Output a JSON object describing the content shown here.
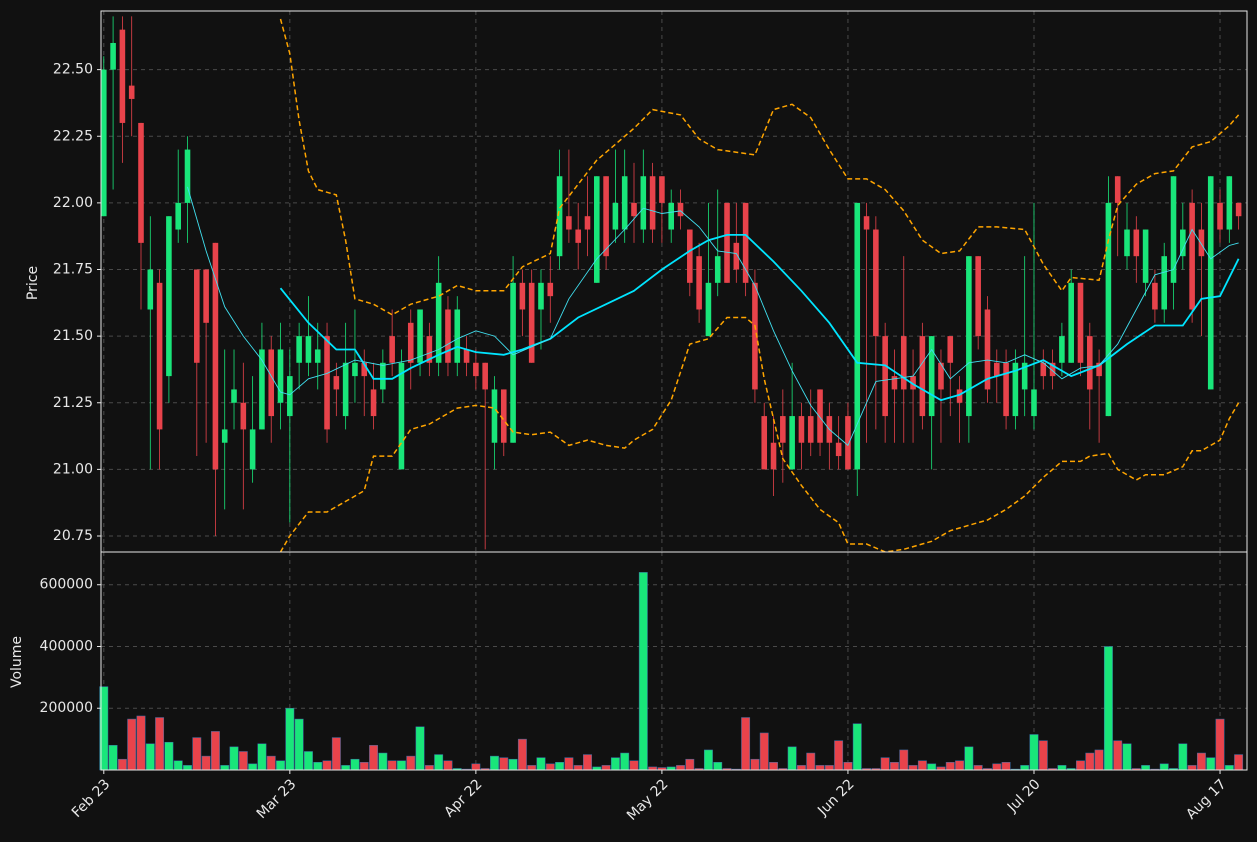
{
  "chart_data": [
    {
      "type": "candlestick",
      "y_label": "Price",
      "grid": true,
      "up_color": "#19e67a",
      "down_color": "#e8434b",
      "xlim": [
        -0.3,
        122.9
      ],
      "ylim": [
        20.69,
        22.72
      ],
      "yticks": [
        {
          "value": 20.75,
          "label": "20.75"
        },
        {
          "value": 21,
          "label": "21.00"
        },
        {
          "value": 21.25,
          "label": "21.25"
        },
        {
          "value": 21.5,
          "label": "21.50"
        },
        {
          "value": 21.75,
          "label": "21.75"
        },
        {
          "value": 22,
          "label": "22.00"
        },
        {
          "value": 22.25,
          "label": "22.25"
        },
        {
          "value": 22.5,
          "label": "22.50"
        }
      ],
      "open": [
        21.95,
        22.5,
        22.65,
        22.44,
        22.3,
        21.6,
        21.7,
        21.35,
        21.9,
        22.0,
        21.75,
        21.75,
        21.85,
        21.1,
        21.25,
        21.25,
        21.0,
        21.15,
        21.45,
        21.25,
        21.2,
        21.4,
        21.4,
        21.4,
        21.5,
        21.35,
        21.2,
        21.35,
        21.4,
        21.3,
        21.3,
        21.5,
        21.0,
        21.55,
        21.4,
        21.5,
        21.4,
        21.6,
        21.4,
        21.45,
        21.4,
        21.4,
        21.1,
        21.3,
        21.1,
        21.7,
        21.7,
        21.6,
        21.7,
        21.8,
        21.95,
        21.9,
        21.95,
        21.7,
        22.1,
        21.9,
        21.9,
        22.0,
        21.9,
        22.1,
        22.1,
        21.9,
        22.0,
        21.9,
        21.8,
        21.5,
        21.7,
        22.0,
        21.85,
        22.0,
        21.7,
        21.2,
        21.1,
        21.2,
        21.0,
        21.2,
        21.2,
        21.3,
        21.2,
        21.1,
        21.2,
        21.0,
        21.95,
        21.9,
        21.5,
        21.35,
        21.5,
        21.35,
        21.5,
        21.2,
        21.4,
        21.5,
        21.3,
        21.2,
        21.8,
        21.6,
        21.4,
        21.4,
        21.2,
        21.3,
        21.2,
        21.4,
        21.4,
        21.4,
        21.4,
        21.7,
        21.5,
        21.4,
        21.2,
        22.1,
        21.8,
        21.9,
        21.7,
        21.7,
        21.6,
        21.7,
        21.8,
        22.0,
        21.9,
        21.3,
        22.0,
        21.9,
        22.0
      ],
      "high": [
        22.55,
        22.7,
        22.7,
        22.7,
        22.3,
        21.95,
        21.75,
        21.95,
        22.2,
        22.25,
        21.75,
        21.75,
        21.85,
        21.45,
        21.45,
        21.4,
        21.35,
        21.55,
        21.5,
        21.55,
        21.45,
        21.55,
        21.65,
        21.55,
        21.55,
        21.4,
        21.55,
        21.6,
        21.45,
        21.4,
        21.45,
        21.6,
        21.45,
        21.6,
        21.6,
        21.55,
        21.8,
        21.65,
        21.65,
        21.5,
        21.45,
        21.4,
        21.35,
        21.3,
        21.8,
        21.75,
        21.75,
        21.75,
        21.8,
        22.2,
        22.2,
        22.0,
        22.1,
        22.1,
        22.1,
        22.2,
        22.2,
        22.15,
        22.2,
        22.15,
        22.1,
        22.05,
        22.05,
        21.9,
        21.85,
        22.0,
        22.05,
        22.0,
        22.0,
        22.0,
        21.75,
        21.25,
        21.2,
        21.3,
        21.4,
        21.25,
        21.3,
        21.3,
        21.25,
        21.2,
        21.25,
        22.0,
        22.0,
        21.95,
        21.55,
        21.45,
        21.8,
        21.45,
        21.55,
        21.5,
        21.45,
        21.5,
        21.35,
        21.8,
        21.8,
        21.65,
        21.45,
        21.45,
        21.45,
        21.8,
        22.0,
        21.45,
        21.45,
        21.55,
        21.75,
        21.7,
        21.55,
        21.45,
        22.1,
        22.1,
        22.0,
        21.95,
        21.9,
        21.75,
        21.85,
        22.1,
        22.0,
        22.05,
        22.0,
        22.1,
        22.05,
        22.1,
        22.0
      ],
      "low": [
        21.95,
        22.05,
        22.15,
        22.25,
        21.6,
        21.0,
        21.0,
        21.25,
        21.85,
        21.85,
        21.05,
        21.1,
        20.75,
        20.85,
        21.15,
        20.85,
        20.95,
        21.15,
        21.1,
        21.15,
        20.8,
        21.3,
        21.35,
        21.3,
        21.1,
        21.2,
        21.15,
        21.25,
        21.2,
        21.15,
        21.25,
        21.35,
        21.0,
        21.3,
        21.35,
        21.35,
        21.35,
        21.35,
        21.35,
        21.35,
        21.3,
        20.7,
        21.0,
        21.05,
        21.1,
        21.5,
        21.4,
        21.45,
        21.55,
        21.75,
        21.85,
        21.75,
        21.8,
        21.7,
        21.75,
        21.85,
        21.85,
        21.85,
        21.85,
        21.85,
        21.85,
        21.85,
        21.9,
        21.65,
        21.55,
        21.5,
        21.65,
        21.7,
        21.7,
        21.65,
        21.25,
        21.0,
        20.9,
        20.95,
        21.0,
        21.0,
        21.05,
        21.05,
        21.0,
        21.0,
        21.0,
        20.9,
        21.1,
        21.15,
        21.1,
        21.1,
        21.1,
        21.1,
        21.15,
        21.0,
        21.1,
        21.2,
        21.1,
        21.1,
        21.45,
        21.25,
        21.25,
        21.15,
        21.15,
        21.2,
        21.15,
        21.3,
        21.3,
        21.35,
        21.4,
        21.35,
        21.15,
        21.1,
        21.2,
        21.8,
        21.75,
        21.7,
        21.65,
        21.55,
        21.55,
        21.6,
        21.75,
        21.55,
        21.5,
        21.3,
        21.85,
        21.85,
        21.9
      ],
      "close": [
        22.5,
        22.6,
        22.3,
        22.39,
        21.85,
        21.75,
        21.15,
        21.95,
        22.0,
        22.2,
        21.4,
        21.55,
        21.0,
        21.15,
        21.3,
        21.15,
        21.15,
        21.45,
        21.2,
        21.45,
        21.35,
        21.5,
        21.5,
        21.45,
        21.15,
        21.3,
        21.4,
        21.4,
        21.35,
        21.2,
        21.4,
        21.4,
        21.4,
        21.4,
        21.6,
        21.4,
        21.7,
        21.4,
        21.6,
        21.4,
        21.35,
        21.3,
        21.3,
        21.1,
        21.7,
        21.6,
        21.4,
        21.7,
        21.65,
        22.1,
        21.9,
        21.85,
        21.9,
        22.1,
        21.8,
        22.0,
        22.1,
        21.95,
        22.1,
        21.9,
        22.0,
        22.0,
        21.95,
        21.7,
        21.6,
        21.7,
        21.8,
        21.7,
        21.75,
        21.7,
        21.3,
        21.0,
        21.0,
        21.1,
        21.2,
        21.1,
        21.1,
        21.1,
        21.1,
        21.05,
        21.0,
        22.0,
        21.9,
        21.5,
        21.2,
        21.3,
        21.3,
        21.3,
        21.2,
        21.5,
        21.3,
        21.4,
        21.25,
        21.8,
        21.5,
        21.3,
        21.35,
        21.2,
        21.4,
        21.4,
        21.3,
        21.35,
        21.35,
        21.5,
        21.7,
        21.4,
        21.3,
        21.35,
        22.0,
        22.0,
        21.9,
        21.8,
        21.9,
        21.6,
        21.8,
        22.1,
        21.9,
        21.6,
        21.8,
        22.1,
        21.9,
        22.1,
        21.95
      ],
      "lines": [
        {
          "color": "#00e5ff",
          "width": 1.8,
          "dash": false,
          "x": [
            19,
            22,
            25,
            27,
            29,
            31,
            33,
            36,
            38,
            40,
            43,
            45,
            48,
            51,
            54,
            57,
            60,
            63,
            65,
            67,
            69,
            72,
            75,
            78,
            81,
            84,
            87,
            90,
            92,
            95,
            98,
            101,
            104,
            107,
            110,
            113,
            116,
            118,
            120,
            122
          ],
          "values": [
            21.68,
            21.55,
            21.45,
            21.45,
            21.34,
            21.34,
            21.38,
            21.43,
            21.46,
            21.44,
            21.43,
            21.45,
            21.49,
            21.57,
            21.62,
            21.67,
            21.75,
            21.82,
            21.86,
            21.88,
            21.88,
            21.78,
            21.67,
            21.55,
            21.4,
            21.39,
            21.32,
            21.26,
            21.28,
            21.34,
            21.37,
            21.41,
            21.35,
            21.39,
            21.47,
            21.54,
            21.54,
            21.64,
            21.65,
            21.79
          ]
        },
        {
          "color": "#40e0f0",
          "width": 0.9,
          "dash": false,
          "x": [
            9,
            11,
            13,
            15,
            17,
            19,
            20,
            22,
            24,
            27,
            30,
            33,
            36,
            38,
            40,
            42,
            44,
            46,
            48,
            50,
            53,
            56,
            58,
            60,
            62,
            64,
            66,
            68,
            70,
            72,
            74,
            76,
            78,
            80,
            83,
            85,
            87,
            89,
            91,
            93,
            95,
            97,
            99,
            101,
            103,
            105,
            107,
            109,
            111,
            113,
            115,
            117,
            119,
            121,
            122
          ],
          "values": [
            22.06,
            21.82,
            21.61,
            21.5,
            21.41,
            21.29,
            21.28,
            21.34,
            21.36,
            21.41,
            21.39,
            21.41,
            21.45,
            21.49,
            21.52,
            21.5,
            21.43,
            21.46,
            21.49,
            21.64,
            21.79,
            21.9,
            21.98,
            21.96,
            21.97,
            21.91,
            21.82,
            21.81,
            21.69,
            21.52,
            21.37,
            21.24,
            21.15,
            21.09,
            21.33,
            21.34,
            21.35,
            21.45,
            21.34,
            21.4,
            21.41,
            21.4,
            21.43,
            21.4,
            21.34,
            21.38,
            21.39,
            21.47,
            21.6,
            21.73,
            21.75,
            21.9,
            21.79,
            21.84,
            21.85
          ]
        },
        {
          "color": "#ffa500",
          "width": 1.5,
          "dash": true,
          "x": [
            19,
            20,
            21,
            22,
            23,
            25,
            26,
            27,
            29,
            31,
            33,
            35,
            36,
            38,
            40,
            43,
            45,
            48,
            49,
            51,
            53,
            55,
            57,
            59,
            62,
            64,
            66,
            68,
            70,
            72,
            74,
            76,
            78,
            80,
            82,
            84,
            86,
            88,
            90,
            92,
            94,
            96,
            99,
            101,
            103,
            104,
            107,
            108,
            109,
            111,
            113,
            115,
            117,
            119,
            121,
            122
          ],
          "values": [
            22.69,
            22.56,
            22.31,
            22.12,
            22.05,
            22.03,
            21.86,
            21.64,
            21.62,
            21.58,
            21.62,
            21.64,
            21.65,
            21.69,
            21.67,
            21.67,
            21.76,
            21.81,
            21.98,
            22.07,
            22.16,
            22.22,
            22.28,
            22.35,
            22.33,
            22.24,
            22.2,
            22.19,
            22.18,
            22.35,
            22.37,
            22.32,
            22.2,
            22.09,
            22.09,
            22.05,
            21.97,
            21.86,
            21.81,
            21.82,
            21.91,
            21.91,
            21.9,
            21.77,
            21.67,
            21.72,
            21.71,
            21.86,
            21.99,
            22.07,
            22.11,
            22.12,
            22.21,
            22.23,
            22.29,
            22.33
          ]
        },
        {
          "color": "#ffa500",
          "width": 1.5,
          "dash": true,
          "x": [
            19,
            20,
            22,
            24,
            26,
            28,
            29,
            31,
            33,
            35,
            37,
            38,
            40,
            42,
            44,
            46,
            48,
            50,
            52,
            54,
            56,
            57,
            59,
            61,
            63,
            65,
            67,
            69,
            70,
            71,
            72,
            73,
            75,
            77,
            79,
            80,
            82,
            84,
            86,
            89,
            91,
            93,
            95,
            97,
            99,
            101,
            103,
            105,
            106,
            108,
            109,
            111,
            112,
            114,
            116,
            117,
            118,
            120,
            121,
            122
          ],
          "values": [
            20.69,
            20.75,
            20.84,
            20.84,
            20.88,
            20.92,
            21.05,
            21.05,
            21.15,
            21.17,
            21.21,
            21.23,
            21.24,
            21.23,
            21.14,
            21.13,
            21.14,
            21.09,
            21.11,
            21.09,
            21.08,
            21.11,
            21.15,
            21.26,
            21.47,
            21.49,
            21.57,
            21.57,
            21.54,
            21.34,
            21.19,
            21.04,
            20.94,
            20.85,
            20.8,
            20.72,
            20.72,
            20.69,
            20.7,
            20.73,
            20.77,
            20.79,
            20.81,
            20.85,
            20.9,
            20.97,
            21.03,
            21.03,
            21.05,
            21.06,
            21.0,
            20.96,
            20.98,
            20.98,
            21.01,
            21.07,
            21.07,
            21.11,
            21.19,
            21.25
          ]
        }
      ]
    },
    {
      "type": "bar",
      "y_label": "Volume",
      "grid": true,
      "xlim": [
        -0.3,
        122.9
      ],
      "ylim": [
        0,
        706000
      ],
      "yticks": [
        200000,
        400000,
        600000
      ],
      "xticks": [
        {
          "value": 0,
          "label": "Feb 23"
        },
        {
          "value": 20,
          "label": "Mar 23"
        },
        {
          "value": 40,
          "label": "Apr 22"
        },
        {
          "value": 60,
          "label": "May 22"
        },
        {
          "value": 80,
          "label": "Jun 22"
        },
        {
          "value": 100,
          "label": "Jul 20"
        },
        {
          "value": 120,
          "label": "Aug 17"
        }
      ],
      "values": [
        270000,
        80000,
        35000,
        165000,
        175000,
        85000,
        170000,
        90000,
        30000,
        15000,
        105000,
        45000,
        125000,
        15000,
        75000,
        60000,
        20000,
        85000,
        45000,
        30000,
        200000,
        165000,
        60000,
        25000,
        30000,
        105000,
        15000,
        35000,
        25000,
        80000,
        55000,
        30000,
        30000,
        45000,
        140000,
        15000,
        50000,
        30000,
        5000,
        3000,
        20000,
        5000,
        45000,
        40000,
        35000,
        100000,
        15000,
        40000,
        20000,
        25000,
        40000,
        15000,
        50000,
        10000,
        15000,
        40000,
        55000,
        30000,
        640000,
        10000,
        8000,
        10000,
        15000,
        35000,
        5000,
        65000,
        25000,
        5000,
        3000,
        170000,
        35000,
        120000,
        25000,
        5000,
        75000,
        15000,
        55000,
        15000,
        15000,
        95000,
        25000,
        150000,
        5000,
        5000,
        40000,
        25000,
        65000,
        15000,
        30000,
        20000,
        10000,
        25000,
        30000,
        75000,
        15000,
        5000,
        20000,
        25000,
        3000,
        15000,
        115000,
        95000,
        5000,
        15000,
        5000,
        30000,
        55000,
        65000,
        400000,
        95000,
        85000,
        5000,
        15000,
        3000,
        20000,
        5000,
        85000,
        15000,
        55000,
        40000,
        165000,
        15000,
        50000
      ]
    }
  ]
}
